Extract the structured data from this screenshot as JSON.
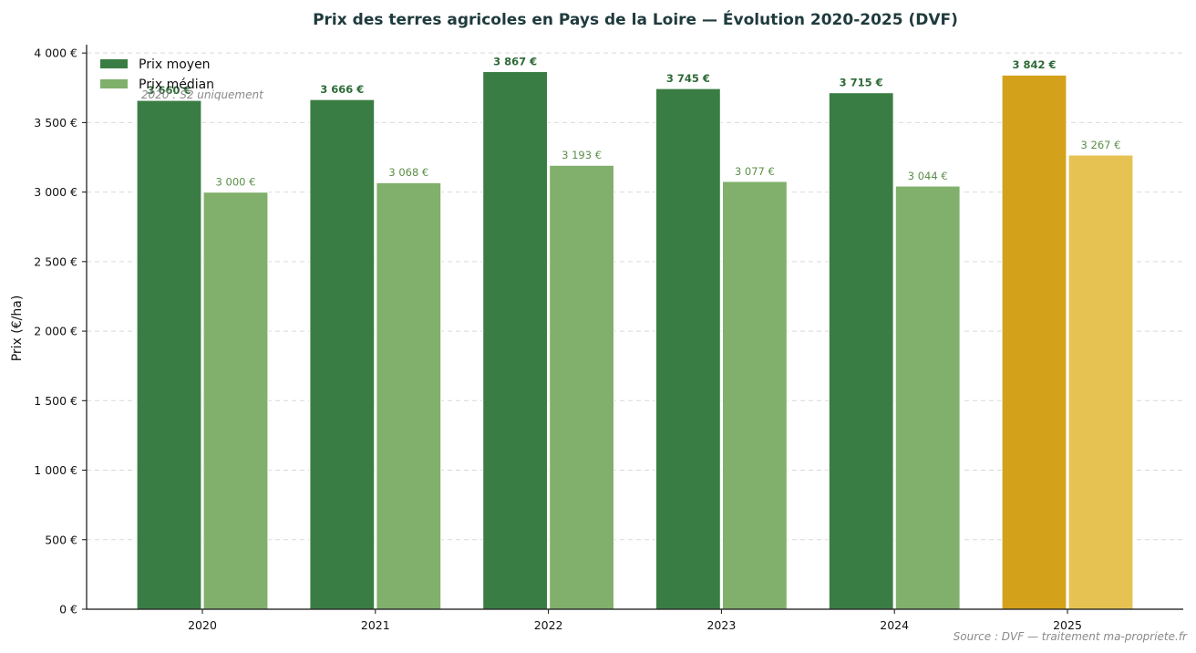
{
  "chart_data": {
    "type": "bar",
    "title": "Prix des terres agricoles en Pays de la Loire — Évolution 2020-2025 (DVF)",
    "xlabel": "",
    "ylabel": "Prix (€/ha)",
    "categories": [
      "2020",
      "2021",
      "2022",
      "2023",
      "2024",
      "2025"
    ],
    "series": [
      {
        "name": "Prix moyen",
        "values": [
          3660,
          3666,
          3867,
          3745,
          3715,
          3842
        ],
        "labels": [
          "3 660 €",
          "3 666 €",
          "3 867 €",
          "3 745 €",
          "3 715 €",
          "3 842 €"
        ]
      },
      {
        "name": "Prix médian",
        "values": [
          3000,
          3068,
          3193,
          3077,
          3044,
          3267
        ],
        "labels": [
          "3 000 €",
          "3 068 €",
          "3 193 €",
          "3 077 €",
          "3 044 €",
          "3 267 €"
        ]
      }
    ],
    "ylim": [
      0,
      4060
    ],
    "yticks": [
      0,
      500,
      1000,
      1500,
      2000,
      2500,
      3000,
      3500,
      4000
    ],
    "ytick_labels": [
      "0 €",
      "500 €",
      "1 000 €",
      "1 500 €",
      "2 000 €",
      "2 500 €",
      "3 000 €",
      "3 500 €",
      "4 000 €"
    ],
    "grid": "horizontal dashed",
    "legend_position": "top-left",
    "annotation": "2020 : S2 uniquement",
    "source": "Source : DVF — traitement ma-propriete.fr",
    "colors": {
      "mean": "#3a7d44",
      "median": "#80b06b",
      "mean_highlight": "#d4a11a",
      "median_highlight": "#e6c252",
      "mean_label": "#2e6b38",
      "median_label": "#5a8f47",
      "highlight_label": "#2e6b38",
      "title": "#1f3a3d"
    },
    "highlight_category": "2025"
  }
}
